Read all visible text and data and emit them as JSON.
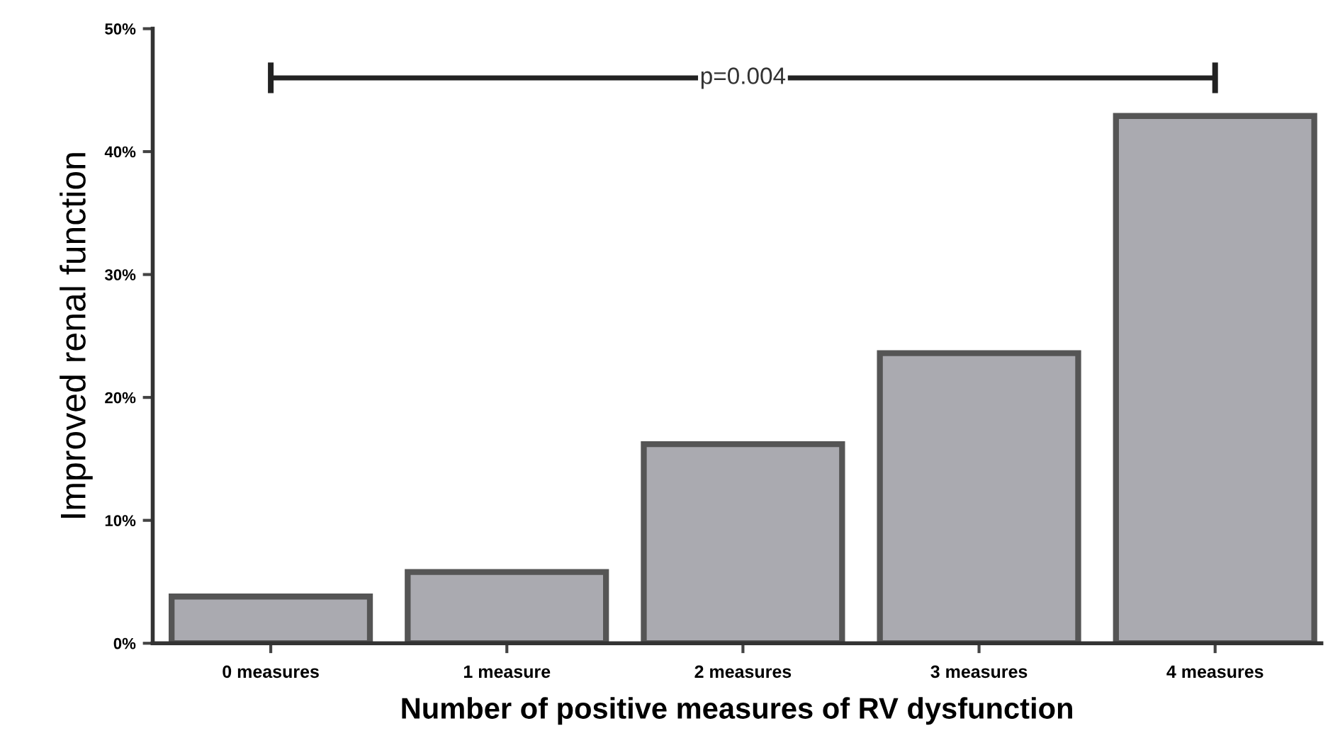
{
  "chart_data": {
    "type": "bar",
    "xlabel": "Number of positive measures of RV dysfunction",
    "ylabel": "Improved renal function",
    "categories": [
      "0 measures",
      "1 measure",
      "2 measures",
      "3 measures",
      "4 measures"
    ],
    "values": [
      3.8,
      5.8,
      16.2,
      23.6,
      42.9
    ],
    "color": "#aaaab0",
    "ylim": [
      0,
      50
    ],
    "yticks": [
      {
        "value": 0,
        "label": "0%"
      },
      {
        "value": 10,
        "label": "10%"
      },
      {
        "value": 20,
        "label": "20%"
      },
      {
        "value": 30,
        "label": "30%"
      },
      {
        "value": 40,
        "label": "40%"
      },
      {
        "value": 50,
        "label": "50%"
      }
    ],
    "annotations": [
      "p=0.004"
    ],
    "grid": false,
    "legend": false
  }
}
